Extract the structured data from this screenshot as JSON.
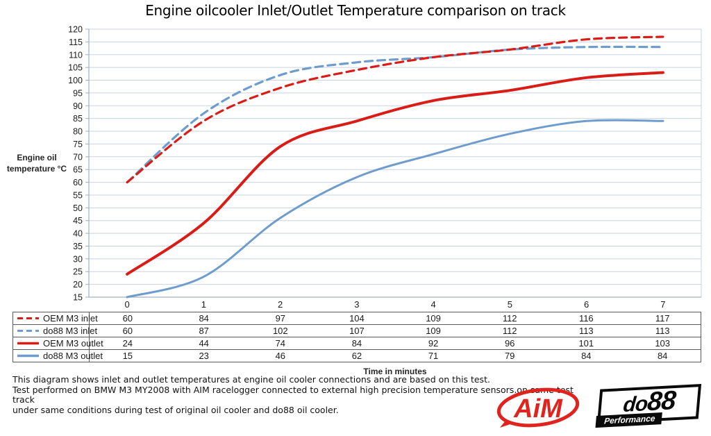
{
  "title": "Engine oilcooler Inlet/Outlet Temperature comparison on track",
  "chart_data": {
    "type": "line",
    "title": "Engine oilcooler Inlet/Outlet Temperature comparison on track",
    "ylabel": "Engine oil temperature °C",
    "xlabel": "Time in minutes",
    "categories": [
      "0",
      "1",
      "2",
      "3",
      "4",
      "5",
      "6",
      "7"
    ],
    "ylim": [
      15,
      120
    ],
    "ytick_step": 5,
    "grid": true,
    "legend_position": "table-left",
    "line_shape": "smoothed",
    "series": [
      {
        "name": "OEM M3 inlet",
        "color": "#d91c16",
        "style": "dashed",
        "values": [
          60,
          84,
          97,
          104,
          109,
          112,
          116,
          117
        ]
      },
      {
        "name": "do88 M3 inlet",
        "color": "#6d9ccd",
        "style": "dashed",
        "values": [
          60,
          87,
          102,
          107,
          109,
          112,
          113,
          113
        ]
      },
      {
        "name": "OEM M3 outlet",
        "color": "#d91c16",
        "style": "solid",
        "values": [
          24,
          44,
          74,
          84,
          92,
          96,
          101,
          103
        ]
      },
      {
        "name": "do88 M3 outlet",
        "color": "#6d9ccd",
        "style": "solid",
        "values": [
          15,
          23,
          46,
          62,
          71,
          79,
          84,
          84
        ]
      }
    ]
  },
  "footnote": {
    "lines": [
      "This diagram shows inlet and outlet temperatures at engine oil cooler connections and are based on this test.",
      "Test performed on BMW M3 MY2008 with AIM racelogger connected to external high precision temperature sensors.on same test track",
      "under same conditions during test of original oil cooler and do88 oil cooler."
    ]
  },
  "logos": {
    "aim": {
      "text": "AiM",
      "color": "#e0231c"
    },
    "do88": {
      "text_prefix": "do",
      "text_suffix": "88",
      "subtext": "Performance"
    }
  },
  "colors": {
    "red_series": "#d91c16",
    "blue_series": "#6d9ccd",
    "gridline": "#c7d3e2",
    "axis_line": "#9fb0c1",
    "table_border": "#595959"
  }
}
